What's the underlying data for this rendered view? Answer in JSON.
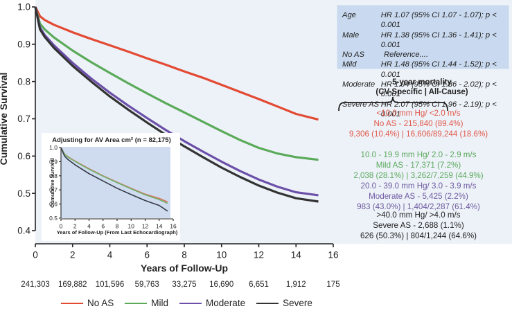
{
  "chart_data": {
    "type": "line",
    "title": "",
    "xlabel": "Years of Follow-Up",
    "ylabel": "Cumulative Survival",
    "xlim": [
      0,
      16
    ],
    "ylim": [
      0.4,
      1.0
    ],
    "x_ticks": [
      "0",
      "2",
      "4",
      "6",
      "8",
      "10",
      "12",
      "14",
      "16"
    ],
    "y_ticks": [
      "0.4",
      "0.5",
      "0.6",
      "0.7",
      "0.8",
      "0.9",
      "1.0"
    ],
    "grid": false,
    "legend_position": "bottom",
    "number_at_risk": [
      "241,303",
      "169,882",
      "101,596",
      "59,763",
      "33,275",
      "16,690",
      "6,651",
      "1,912",
      "175"
    ],
    "x": [
      0,
      0.25,
      0.5,
      1,
      2,
      3,
      4,
      5,
      6,
      7,
      8,
      9,
      10,
      11,
      12,
      13,
      14,
      15.2
    ],
    "series": [
      {
        "name": "No AS",
        "color": "#e34a33",
        "values": [
          1.0,
          0.975,
          0.965,
          0.952,
          0.932,
          0.914,
          0.897,
          0.88,
          0.862,
          0.845,
          0.827,
          0.81,
          0.791,
          0.772,
          0.753,
          0.733,
          0.713,
          0.698
        ]
      },
      {
        "name": "Mild",
        "color": "#5aaa5a",
        "values": [
          1.0,
          0.955,
          0.94,
          0.918,
          0.883,
          0.852,
          0.823,
          0.795,
          0.768,
          0.742,
          0.717,
          0.692,
          0.667,
          0.643,
          0.622,
          0.607,
          0.597,
          0.59
        ]
      },
      {
        "name": "Moderate",
        "color": "#6b4fa8",
        "values": [
          1.0,
          0.945,
          0.925,
          0.897,
          0.85,
          0.808,
          0.77,
          0.735,
          0.702,
          0.67,
          0.64,
          0.612,
          0.585,
          0.56,
          0.537,
          0.518,
          0.503,
          0.495
        ]
      },
      {
        "name": "Severe",
        "color": "#333333",
        "values": [
          1.0,
          0.94,
          0.92,
          0.89,
          0.842,
          0.8,
          0.76,
          0.724,
          0.69,
          0.657,
          0.626,
          0.597,
          0.569,
          0.544,
          0.521,
          0.502,
          0.487,
          0.478
        ]
      }
    ],
    "inset": {
      "title": "Adjusting for AV Area cm² (n = 82,175)",
      "xlabel": "Years of Follow-Up (From Last Echocardiograph)",
      "ylabel": "Cumulative Survival",
      "xlim": [
        0,
        16
      ],
      "ylim": [
        0.5,
        1.0
      ],
      "x_ticks": [
        "0",
        "2",
        "4",
        "6",
        "8",
        "10",
        "12",
        "14",
        "16"
      ],
      "y_ticks": [
        "0.5",
        "0.6",
        "0.7",
        "0.8",
        "0.9",
        "1.0"
      ],
      "x": [
        0,
        0.5,
        1,
        2,
        4,
        6,
        8,
        10,
        12,
        14,
        15.2
      ],
      "series": [
        {
          "name": "No AS",
          "color": "#d9735a",
          "values": [
            1.0,
            0.955,
            0.935,
            0.905,
            0.85,
            0.8,
            0.755,
            0.712,
            0.67,
            0.64,
            0.615
          ]
        },
        {
          "name": "Mild",
          "color": "#6fb06a",
          "values": [
            1.0,
            0.953,
            0.932,
            0.902,
            0.846,
            0.797,
            0.752,
            0.708,
            0.665,
            0.632,
            0.605
          ]
        },
        {
          "name": "Severe",
          "color": "#333a45",
          "values": [
            1.0,
            0.94,
            0.915,
            0.878,
            0.815,
            0.763,
            0.712,
            0.667,
            0.625,
            0.59,
            0.55
          ]
        }
      ]
    }
  },
  "hazard_ratios": [
    {
      "label": "Age",
      "value": "HR 1.07 (95% CI 1.07 - 1.07); p < 0.001"
    },
    {
      "label": "Male",
      "value": "HR 1.38 (95% CI 1.36 - 1.41); p < 0.001"
    },
    {
      "label": "No AS",
      "value": "Reference...."
    },
    {
      "label": "Mild",
      "value": "HR 1.48 (95% CI 1.44 - 1.52); p < 0.001"
    },
    {
      "label": "Moderate",
      "value": "HR 1.94 (95% CI 1.86 - 2.02); p < 0.001"
    },
    {
      "label": "Severe AS",
      "value": "HR 2.07 (95% CI 1.96 - 2.19); p < 0.001"
    }
  ],
  "mortality": {
    "title_line1": "5-year mortality",
    "title_line2": "(CV-Specific | All-Cause)",
    "groups": [
      {
        "range": "<10.0 mm Hg/ <2.0 m/s",
        "name": "No AS - 215,840 (89.4%)",
        "stats": "9,306 (10.4%) | 16,606/89,244 (18.6%)"
      },
      {
        "range": "10.0 - 19.9 mm Hg/ 2.0 - 2.9 m/s",
        "name": "Mild AS - 17,371 (7.2%)",
        "stats": "2,038 (28.1%) | 3,262/7,259 (44.9%)"
      },
      {
        "range": "20.0 - 39.0 mm Hg/ 3.0 - 3.9 m/s",
        "name": "Moderate AS - 5,425 (2.2%)",
        "stats": "983 (43.0%) | 1,404/2,287 (61.4%)"
      },
      {
        "range": ">40.0 mm Hg/ >4.0 m/s",
        "name": "Severe AS - 2,688 (1.1%)",
        "stats": "626 (50.3%) | 804/1,244 (64.6%)"
      }
    ]
  },
  "legend": [
    {
      "label": "No AS",
      "color": "#e34a33"
    },
    {
      "label": "Mild",
      "color": "#5aaa5a"
    },
    {
      "label": "Moderate",
      "color": "#6b4fa8"
    },
    {
      "label": "Severe",
      "color": "#333333"
    }
  ]
}
